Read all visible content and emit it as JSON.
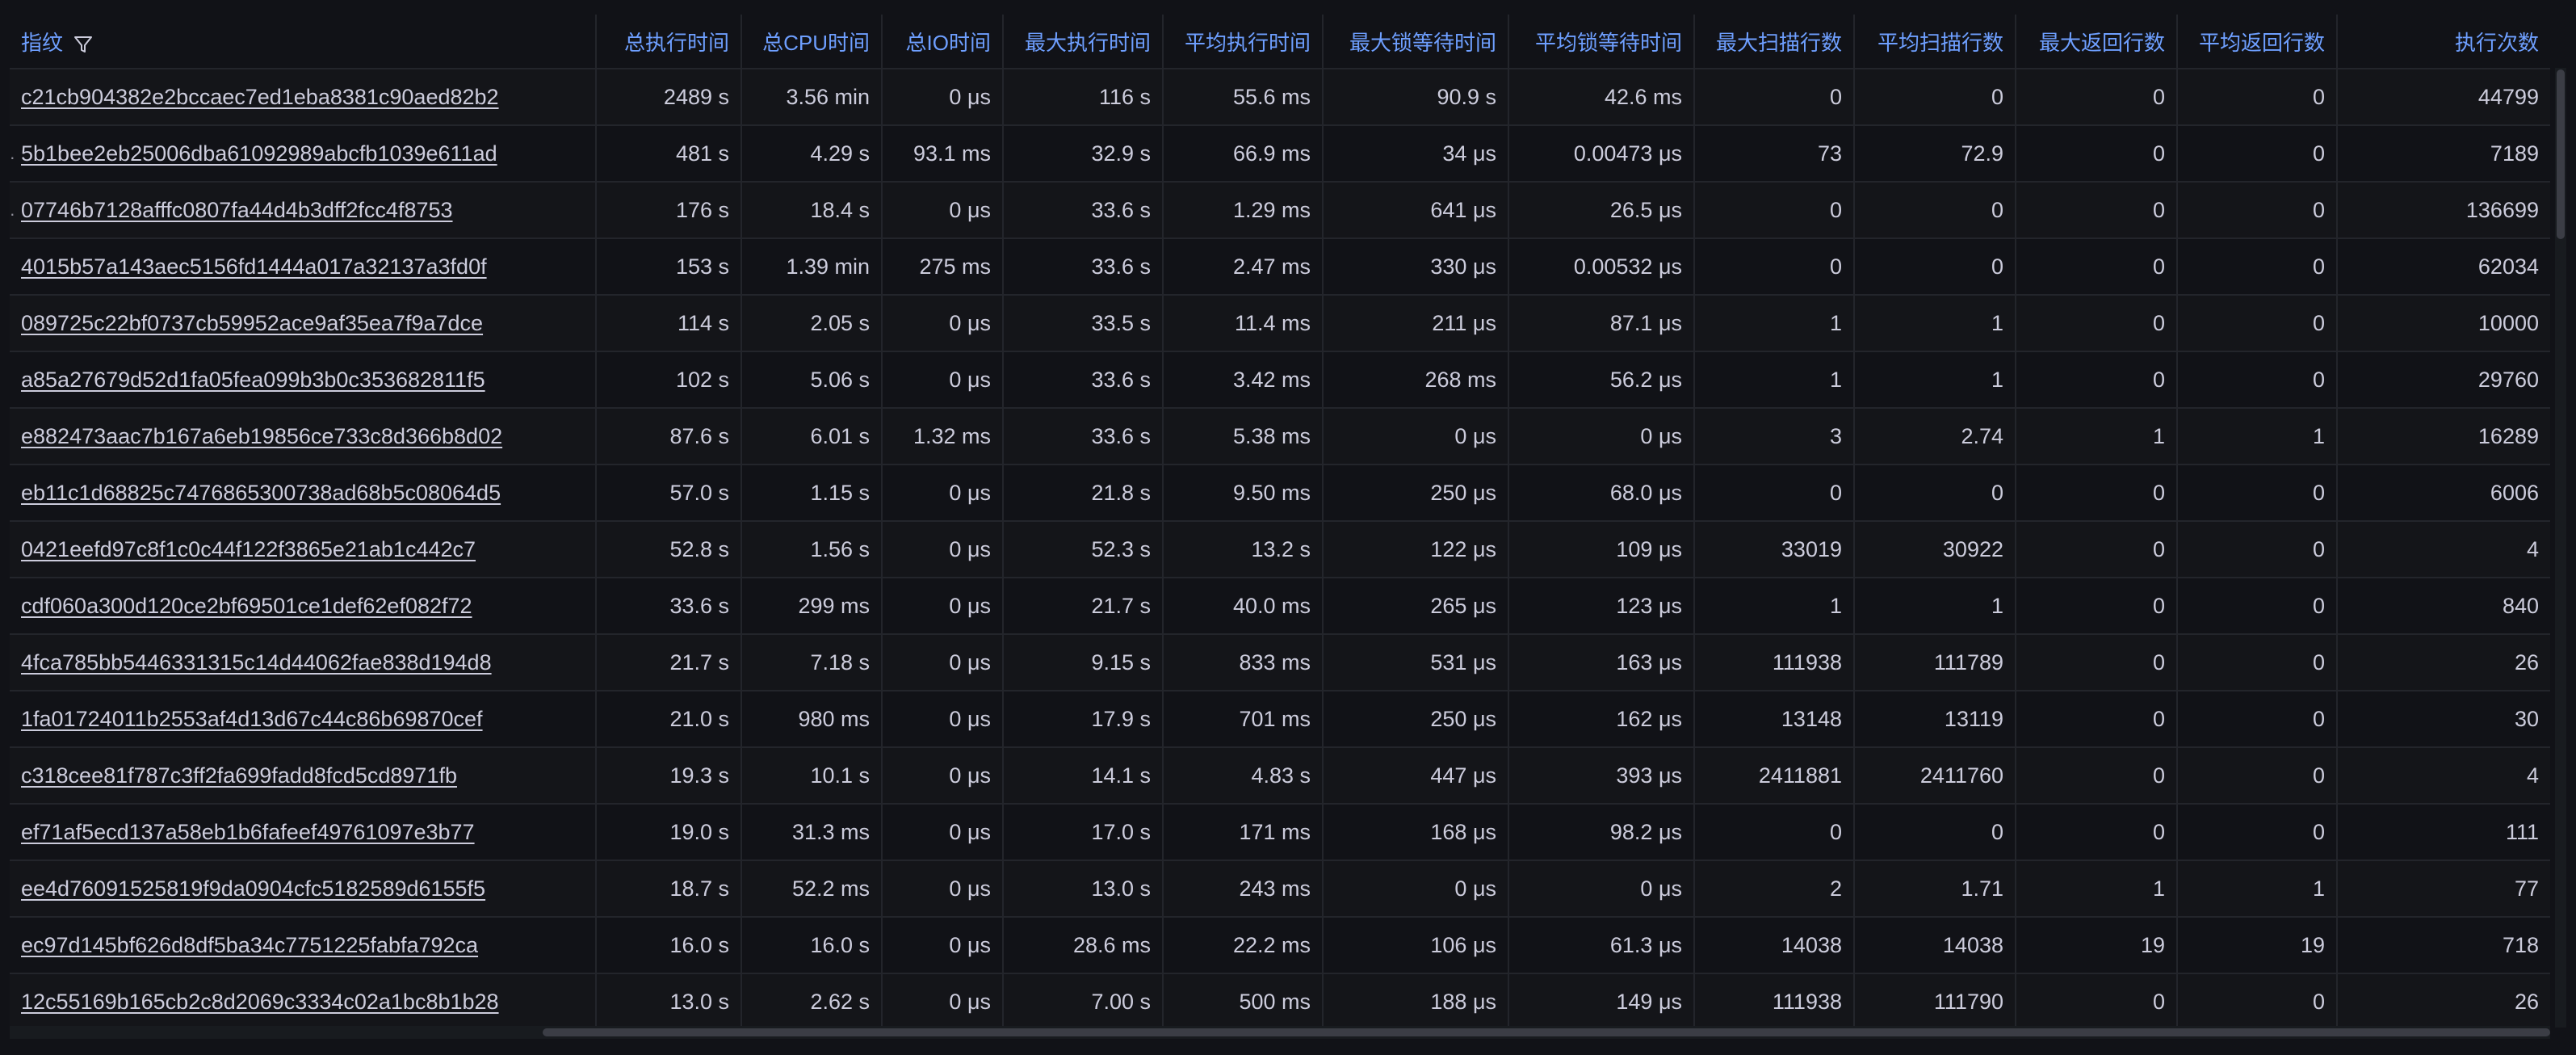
{
  "table": {
    "columns": [
      {
        "key": "fingerprint",
        "label": "指纹",
        "align": "left",
        "filter": true
      },
      {
        "key": "total_exec_time",
        "label": "总执行时间",
        "align": "right"
      },
      {
        "key": "total_cpu_time",
        "label": "总CPU时间",
        "align": "right"
      },
      {
        "key": "total_io_time",
        "label": "总IO时间",
        "align": "right"
      },
      {
        "key": "max_exec_time",
        "label": "最大执行时间",
        "align": "right"
      },
      {
        "key": "avg_exec_time",
        "label": "平均执行时间",
        "align": "right"
      },
      {
        "key": "max_lock_wait",
        "label": "最大锁等待时间",
        "align": "right"
      },
      {
        "key": "avg_lock_wait",
        "label": "平均锁等待时间",
        "align": "right"
      },
      {
        "key": "max_rows_scanned",
        "label": "最大扫描行数",
        "align": "right"
      },
      {
        "key": "avg_rows_scanned",
        "label": "平均扫描行数",
        "align": "right"
      },
      {
        "key": "max_rows_returned",
        "label": "最大返回行数",
        "align": "right"
      },
      {
        "key": "avg_rows_returned",
        "label": "平均返回行数",
        "align": "right"
      },
      {
        "key": "exec_count",
        "label": "执行次数",
        "align": "right"
      }
    ],
    "rows": [
      [
        "c21cb904382e2bccaec7ed1eba8381c90aed82b2",
        "2489 s",
        "3.56 min",
        "0 μs",
        "116 s",
        "55.6 ms",
        "90.9 s",
        "42.6 ms",
        "0",
        "0",
        "0",
        "0",
        "44799"
      ],
      [
        "5b1bee2eb25006dba61092989abcfb1039e611ad",
        "481 s",
        "4.29 s",
        "93.1 ms",
        "32.9 s",
        "66.9 ms",
        "34 μs",
        "0.00473 μs",
        "73",
        "72.9",
        "0",
        "0",
        "7189"
      ],
      [
        "07746b7128afffc0807fa44d4b3dff2fcc4f8753",
        "176 s",
        "18.4 s",
        "0 μs",
        "33.6 s",
        "1.29 ms",
        "641 μs",
        "26.5 μs",
        "0",
        "0",
        "0",
        "0",
        "136699"
      ],
      [
        "4015b57a143aec5156fd1444a017a32137a3fd0f",
        "153 s",
        "1.39 min",
        "275 ms",
        "33.6 s",
        "2.47 ms",
        "330 μs",
        "0.00532 μs",
        "0",
        "0",
        "0",
        "0",
        "62034"
      ],
      [
        "089725c22bf0737cb59952ace9af35ea7f9a7dce",
        "114 s",
        "2.05 s",
        "0 μs",
        "33.5 s",
        "11.4 ms",
        "211 μs",
        "87.1 μs",
        "1",
        "1",
        "0",
        "0",
        "10000"
      ],
      [
        "a85a27679d52d1fa05fea099b3b0c353682811f5",
        "102 s",
        "5.06 s",
        "0 μs",
        "33.6 s",
        "3.42 ms",
        "268 ms",
        "56.2 μs",
        "1",
        "1",
        "0",
        "0",
        "29760"
      ],
      [
        "e882473aac7b167a6eb19856ce733c8d366b8d02",
        "87.6 s",
        "6.01 s",
        "1.32 ms",
        "33.6 s",
        "5.38 ms",
        "0 μs",
        "0 μs",
        "3",
        "2.74",
        "1",
        "1",
        "16289"
      ],
      [
        "eb11c1d68825c7476865300738ad68b5c08064d5",
        "57.0 s",
        "1.15 s",
        "0 μs",
        "21.8 s",
        "9.50 ms",
        "250 μs",
        "68.0 μs",
        "0",
        "0",
        "0",
        "0",
        "6006"
      ],
      [
        "0421eefd97c8f1c0c44f122f3865e21ab1c442c7",
        "52.8 s",
        "1.56 s",
        "0 μs",
        "52.3 s",
        "13.2 s",
        "122 μs",
        "109 μs",
        "33019",
        "30922",
        "0",
        "0",
        "4"
      ],
      [
        "cdf060a300d120ce2bf69501ce1def62ef082f72",
        "33.6 s",
        "299 ms",
        "0 μs",
        "21.7 s",
        "40.0 ms",
        "265 μs",
        "123 μs",
        "1",
        "1",
        "0",
        "0",
        "840"
      ],
      [
        "4fca785bb5446331315c14d44062fae838d194d8",
        "21.7 s",
        "7.18 s",
        "0 μs",
        "9.15 s",
        "833 ms",
        "531 μs",
        "163 μs",
        "111938",
        "111789",
        "0",
        "0",
        "26"
      ],
      [
        "1fa01724011b2553af4d13d67c44c86b69870cef",
        "21.0 s",
        "980 ms",
        "0 μs",
        "17.9 s",
        "701 ms",
        "250 μs",
        "162 μs",
        "13148",
        "13119",
        "0",
        "0",
        "30"
      ],
      [
        "c318cee81f787c3ff2fa699fadd8fcd5cd8971fb",
        "19.3 s",
        "10.1 s",
        "0 μs",
        "14.1 s",
        "4.83 s",
        "447 μs",
        "393 μs",
        "2411881",
        "2411760",
        "0",
        "0",
        "4"
      ],
      [
        "ef71af5ecd137a58eb1b6fafeef49761097e3b77",
        "19.0 s",
        "31.3 ms",
        "0 μs",
        "17.0 s",
        "171 ms",
        "168 μs",
        "98.2 μs",
        "0",
        "0",
        "0",
        "0",
        "111"
      ],
      [
        "ee4d76091525819f9da0904cfc5182589d6155f5",
        "18.7 s",
        "52.2 ms",
        "0 μs",
        "13.0 s",
        "243 ms",
        "0 μs",
        "0 μs",
        "2",
        "1.71",
        "1",
        "1",
        "77"
      ],
      [
        "ec97d145bf626d8df5ba34c7751225fabfa792ca",
        "16.0 s",
        "16.0 s",
        "0 μs",
        "28.6 ms",
        "22.2 ms",
        "106 μs",
        "61.3 μs",
        "14038",
        "14038",
        "19",
        "19",
        "718"
      ],
      [
        "12c55169b165cb2c8d2069c3334c02a1bc8b1b28",
        "13.0 s",
        "2.62 s",
        "0 μs",
        "7.00 s",
        "500 ms",
        "188 μs",
        "149 μs",
        "111938",
        "111790",
        "0",
        "0",
        "26"
      ]
    ],
    "row_markers": [
      "",
      "...",
      "...",
      "",
      "..",
      "..",
      "..",
      "..",
      "..",
      "..",
      "..",
      "..",
      "..",
      "..",
      "..",
      "..",
      ".."
    ]
  },
  "icons": {
    "filter": "filter-icon",
    "row_marker": "ellipsis-icon"
  },
  "colors": {
    "background": "#111217",
    "header_text": "#6e9fff",
    "cell_text": "#ccccdc",
    "grid_line": "#23252b",
    "scrollbar_thumb": "#3b3d45"
  }
}
